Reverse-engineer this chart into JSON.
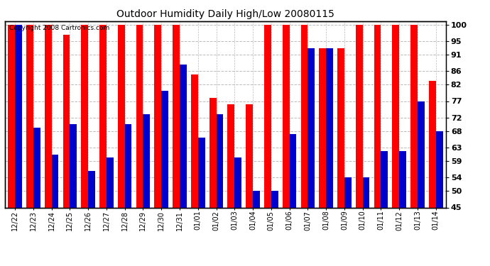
{
  "title": "Outdoor Humidity Daily High/Low 20080115",
  "copyright": "Copyright 2008 Cartronics.com",
  "categories": [
    "12/22",
    "12/23",
    "12/24",
    "12/25",
    "12/26",
    "12/27",
    "12/28",
    "12/29",
    "12/30",
    "12/31",
    "01/01",
    "01/02",
    "01/03",
    "01/04",
    "01/05",
    "01/06",
    "01/07",
    "01/08",
    "01/09",
    "01/10",
    "01/11",
    "01/12",
    "01/13",
    "01/14"
  ],
  "highs": [
    100,
    100,
    100,
    97,
    100,
    100,
    100,
    100,
    100,
    100,
    85,
    78,
    76,
    76,
    100,
    100,
    100,
    93,
    93,
    100,
    100,
    100,
    100,
    83
  ],
  "lows": [
    100,
    69,
    61,
    70,
    56,
    60,
    70,
    73,
    80,
    88,
    66,
    73,
    60,
    50,
    50,
    67,
    93,
    93,
    54,
    54,
    62,
    62,
    77,
    68
  ],
  "high_color": "#ff0000",
  "low_color": "#0000cc",
  "background_color": "#ffffff",
  "grid_color": "#bbbbbb",
  "yticks": [
    45,
    50,
    54,
    59,
    63,
    68,
    72,
    77,
    82,
    86,
    91,
    95,
    100
  ],
  "ymin": 45,
  "ymax": 101,
  "bar_width": 0.38
}
